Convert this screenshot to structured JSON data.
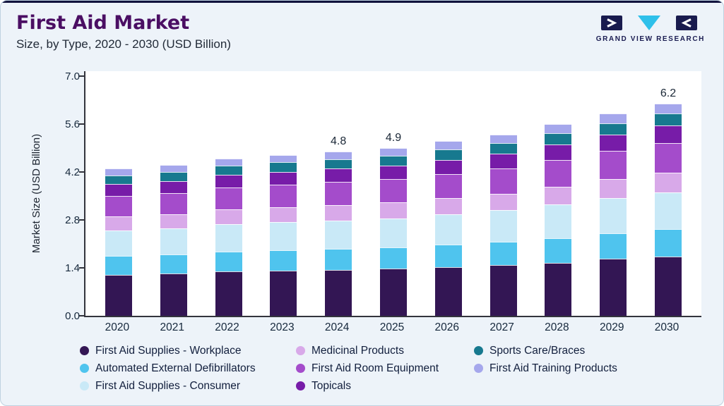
{
  "page": {
    "title": "First Aid Market",
    "subtitle": "Size, by Type, 2020 - 2030 (USD Billion)"
  },
  "brand": {
    "name": "GRAND VIEW RESEARCH",
    "navy": "#191B4E",
    "cyan": "#2EC0EA"
  },
  "chart_data": {
    "type": "bar",
    "stacked": true,
    "title": "First Aid Market Size, by Type, 2020 - 2030 (USD Billion)",
    "ylabel": "Market Size (USD Billion)",
    "ylim": [
      0,
      7.0
    ],
    "yticks": [
      "0.0",
      "1.4",
      "2.8",
      "4.2",
      "5.6",
      "7.0"
    ],
    "grid": false,
    "legend_position": "bottom",
    "categories": [
      "2020",
      "2021",
      "2022",
      "2023",
      "2024",
      "2025",
      "2026",
      "2027",
      "2028",
      "2029",
      "2030"
    ],
    "totals": [
      4.3,
      4.4,
      4.6,
      4.7,
      4.8,
      4.9,
      5.1,
      5.3,
      5.6,
      5.9,
      6.2
    ],
    "bar_value_labels": [
      "",
      "",
      "",
      "",
      "4.8",
      "4.9",
      "",
      "",
      "",
      "",
      "6.2"
    ],
    "series": [
      {
        "name": "First Aid Supplies - Workplace",
        "color": "#331654",
        "values": [
          1.2,
          1.23,
          1.29,
          1.31,
          1.34,
          1.37,
          1.42,
          1.48,
          1.55,
          1.66,
          1.74
        ]
      },
      {
        "name": "Automated External Defibrillators",
        "color": "#4FC4EE",
        "values": [
          0.55,
          0.56,
          0.59,
          0.6,
          0.61,
          0.63,
          0.65,
          0.68,
          0.72,
          0.75,
          0.79
        ]
      },
      {
        "name": "First Aid Supplies - Consumer",
        "color": "#C9E9F7",
        "values": [
          0.75,
          0.77,
          0.8,
          0.82,
          0.84,
          0.85,
          0.89,
          0.92,
          0.98,
          1.03,
          1.08
        ]
      },
      {
        "name": "Medicinal Products",
        "color": "#D8A9E9",
        "values": [
          0.4,
          0.41,
          0.43,
          0.44,
          0.45,
          0.46,
          0.47,
          0.49,
          0.52,
          0.55,
          0.58
        ]
      },
      {
        "name": "First Aid Room Equipment",
        "color": "#A44CCB",
        "values": [
          0.6,
          0.61,
          0.64,
          0.66,
          0.67,
          0.68,
          0.71,
          0.74,
          0.78,
          0.82,
          0.86
        ]
      },
      {
        "name": "Topicals",
        "color": "#771CA8",
        "values": [
          0.35,
          0.36,
          0.37,
          0.38,
          0.39,
          0.4,
          0.42,
          0.43,
          0.46,
          0.48,
          0.5
        ]
      },
      {
        "name": "Sports Care/Braces",
        "color": "#17798F",
        "values": [
          0.25,
          0.26,
          0.27,
          0.27,
          0.28,
          0.28,
          0.3,
          0.31,
          0.33,
          0.34,
          0.36
        ]
      },
      {
        "name": "First Aid Training Products",
        "color": "#A5A7EC",
        "values": [
          0.2,
          0.2,
          0.21,
          0.22,
          0.22,
          0.23,
          0.24,
          0.25,
          0.26,
          0.27,
          0.29
        ]
      }
    ],
    "legend_order": [
      0,
      3,
      6,
      1,
      4,
      7,
      2,
      5
    ]
  }
}
